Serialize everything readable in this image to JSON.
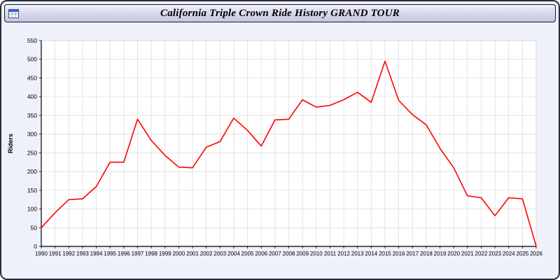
{
  "window": {
    "title": "California Triple Crown Ride History GRAND TOUR",
    "icon": "spreadsheet-chart-icon"
  },
  "chart_data": {
    "type": "line",
    "title": "California Triple Crown Ride History GRAND TOUR",
    "xlabel": "",
    "ylabel": "Riders",
    "ylim": [
      0,
      550
    ],
    "ytick_step": 50,
    "grid": true,
    "legend": "none",
    "line_color": "#ff0000",
    "grid_color": "#d9d9d9",
    "axis_color": "#000000",
    "categories": [
      "1990",
      "1991",
      "1992",
      "1993",
      "1994",
      "1995",
      "1996",
      "1997",
      "1998",
      "1999",
      "2000",
      "2001",
      "2002",
      "2003",
      "2004",
      "2005",
      "2006",
      "2007",
      "2008",
      "2009",
      "2010",
      "2011",
      "2012",
      "2013",
      "2014",
      "2015",
      "2016",
      "2017",
      "2018",
      "2019",
      "2020",
      "2021",
      "2022",
      "2023",
      "2024",
      "2025",
      "2026"
    ],
    "series": [
      {
        "name": "Riders",
        "values": [
          50,
          90,
          125,
          127,
          160,
          225,
          225,
          340,
          283,
          243,
          212,
          210,
          265,
          280,
          343,
          310,
          268,
          338,
          340,
          392,
          372,
          377,
          392,
          412,
          385,
          495,
          390,
          352,
          325,
          262,
          210,
          135,
          130,
          82,
          130,
          127,
          0
        ]
      }
    ]
  }
}
